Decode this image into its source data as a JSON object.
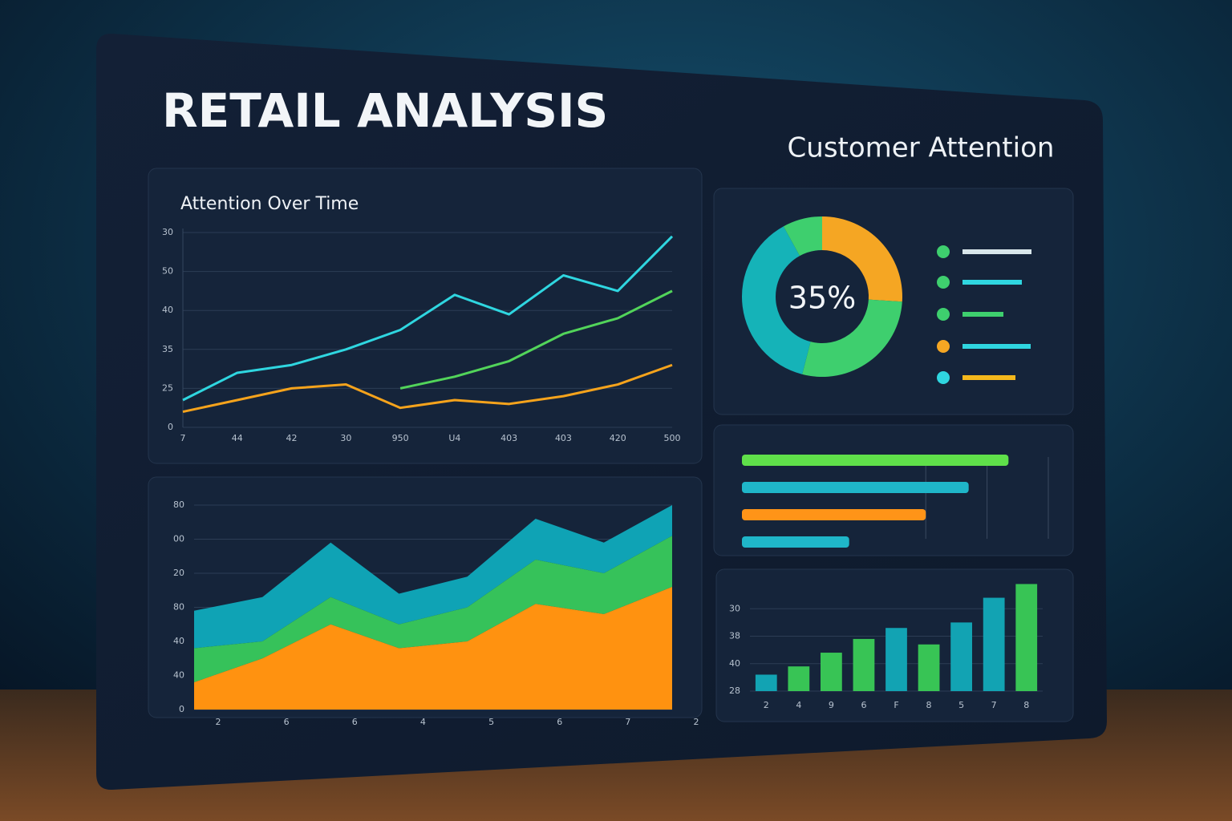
{
  "header": {
    "title": "RETAIL ANALYSIS"
  },
  "chart_data": [
    {
      "type": "line",
      "title": "Attention Over Time",
      "categories": [
        "7",
        "44",
        "42",
        "30",
        "950",
        "U4",
        "403",
        "403",
        "420",
        "500"
      ],
      "series": [
        {
          "color": "#2fd6e0",
          "values": [
            0.7,
            1.4,
            1.6,
            2.0,
            2.5,
            3.4,
            2.9,
            3.9,
            3.5,
            4.9
          ]
        },
        {
          "color": "#52d45a",
          "values": [
            null,
            null,
            null,
            null,
            1.0,
            1.3,
            1.7,
            2.4,
            2.8,
            3.5
          ]
        },
        {
          "color": "#f5a31c",
          "values": [
            0.4,
            0.7,
            1.0,
            1.1,
            0.5,
            0.7,
            0.6,
            0.8,
            1.1,
            1.6
          ]
        }
      ],
      "ylim": [
        0,
        5
      ],
      "yticks": [
        0,
        {
          "value": 1,
          "label": "25"
        },
        {
          "value": 2,
          "label": "35"
        },
        {
          "value": 3,
          "label": "40"
        },
        {
          "value": 4,
          "label": "50"
        },
        {
          "value": 5,
          "label": "30"
        }
      ],
      "grid": true
    },
    {
      "type": "pie",
      "title": "Customer Attention",
      "center_label": "35%",
      "values": [
        26,
        28,
        38,
        8
      ],
      "colors": [
        "#f5a623",
        "#3ecf6e",
        "#15b3b8",
        "#3ecf6e"
      ]
    },
    {
      "type": "hbar",
      "values": [
        87,
        74,
        60,
        35
      ],
      "colors": [
        "#5fe04a",
        "#1fb6c9",
        "#ff9418",
        "#1fb6c9"
      ],
      "xlim": [
        0,
        100
      ]
    },
    {
      "type": "area",
      "categories": [
        "2",
        "6",
        "6",
        "4",
        "5",
        "6",
        "7",
        "2"
      ],
      "series": [
        {
          "color": "#ff9210",
          "values": [
            0.8,
            1.5,
            2.5,
            1.8,
            2.0,
            3.1,
            2.8,
            3.6
          ]
        },
        {
          "color": "#36c25a",
          "values": [
            1.0,
            0.5,
            0.8,
            0.7,
            1.0,
            1.3,
            1.2,
            1.5
          ]
        },
        {
          "color": "#0fa3b5",
          "values": [
            1.1,
            1.3,
            1.6,
            0.9,
            0.9,
            1.2,
            0.9,
            0.9
          ]
        }
      ],
      "ylim": [
        0,
        6
      ],
      "yticks": [
        0,
        {
          "value": 1,
          "label": "40"
        },
        {
          "value": 2,
          "label": "40"
        },
        {
          "value": 3,
          "label": "80"
        },
        {
          "value": 4,
          "label": "20"
        },
        {
          "value": 5,
          "label": "00"
        },
        {
          "value": 6,
          "label": "80"
        }
      ],
      "grid": true
    },
    {
      "type": "bar",
      "categories": [
        "2",
        "4",
        "9",
        "6",
        "F",
        "8",
        "5",
        "7",
        "8"
      ],
      "values": [
        0.6,
        0.9,
        1.4,
        1.9,
        2.3,
        1.7,
        2.5,
        3.4,
        3.9
      ],
      "colors": [
        "#12a3b3",
        "#38c455",
        "#38c455",
        "#38c455",
        "#12a3b3",
        "#38c455",
        "#12a3b3",
        "#12a3b3",
        "#38c455"
      ],
      "ylim": [
        0,
        4
      ],
      "yticks": [
        {
          "value": 0,
          "label": "28"
        },
        {
          "value": 1,
          "label": "40"
        },
        {
          "value": 2,
          "label": "38"
        },
        {
          "value": 3,
          "label": "30"
        }
      ],
      "grid": true
    }
  ]
}
